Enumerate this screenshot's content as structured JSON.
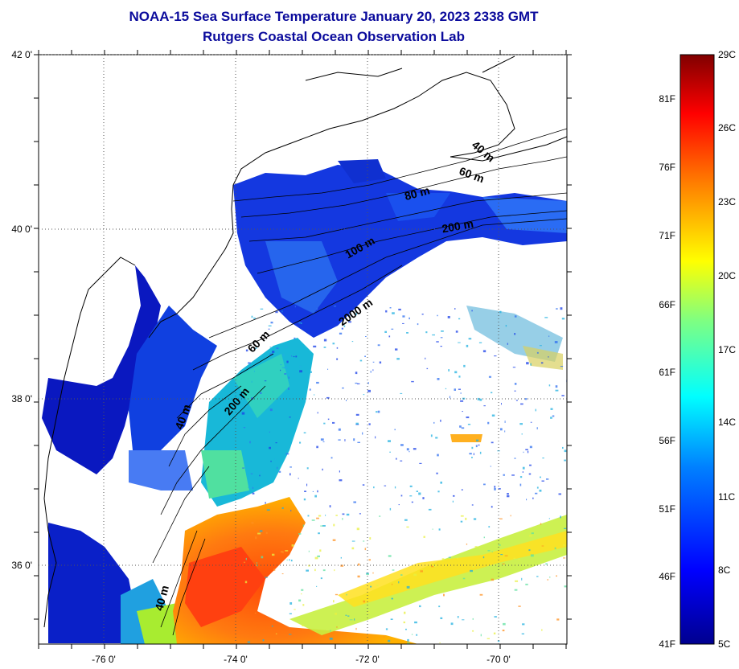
{
  "header": {
    "title": "NOAA-15 Sea Surface Temperature January 20, 2023 2338 GMT",
    "subtitle": "Rutgers Coastal Ocean Observation Lab"
  },
  "map": {
    "lon_ticks": [
      "-76 0'",
      "-74 0'",
      "-72 0'",
      "-70 0'"
    ],
    "lat_ticks": [
      "42 0'",
      "40 0'",
      "38 0'",
      "36 0'"
    ],
    "contour_labels": [
      "40 m",
      "60 m",
      "80 m",
      "200 m",
      "100 m",
      "2000 m",
      "60 m",
      "200 m",
      "40 m",
      "40 m"
    ],
    "colors": {
      "land": "#ffffff",
      "cold": "#0a1fc8",
      "warm": "#ff5a10",
      "cloud": "#ffffff"
    }
  },
  "colorbar": {
    "fahrenheit_labels": [
      "81F",
      "76F",
      "71F",
      "66F",
      "61F",
      "56F",
      "51F",
      "46F",
      "41F"
    ],
    "celsius_labels": [
      "29C",
      "26C",
      "23C",
      "20C",
      "17C",
      "14C",
      "11C",
      "8C",
      "5C"
    ],
    "colormap": [
      "#00008f",
      "#0000ff",
      "#0080ff",
      "#00ffff",
      "#80ff80",
      "#ffff00",
      "#ff8000",
      "#ff0000",
      "#800000"
    ]
  }
}
